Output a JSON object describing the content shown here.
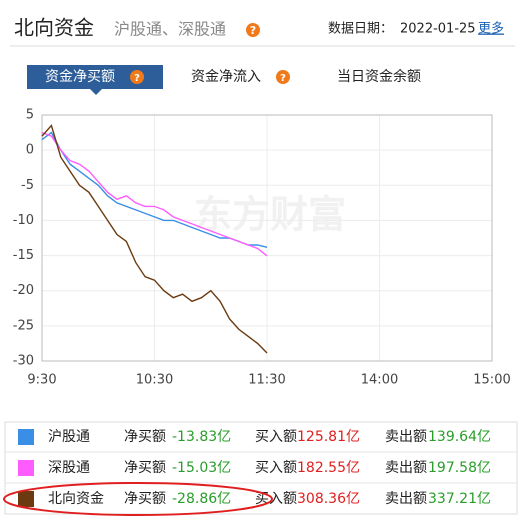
{
  "header": {
    "title": "北向资金",
    "subtitle": "沪股通、深股通",
    "help": "?",
    "date_label": "数据日期：",
    "date": "2022-01-25",
    "more": "更多"
  },
  "tabs": [
    "资金净买额",
    "资金净流入",
    "当日资金余额"
  ],
  "chart_data": {
    "type": "line",
    "watermark": "东方财富",
    "x": [
      "9:30",
      "9:35",
      "9:40",
      "9:45",
      "9:50",
      "9:55",
      "10:00",
      "10:05",
      "10:10",
      "10:15",
      "10:20",
      "10:25",
      "10:30",
      "10:35",
      "10:40",
      "10:45",
      "10:50",
      "10:55",
      "11:00",
      "11:05",
      "11:10",
      "11:15",
      "11:20",
      "11:25",
      "11:30"
    ],
    "xlim": [
      "9:30",
      "15:00"
    ],
    "xticks": [
      "9:30",
      "10:30",
      "11:30",
      "14:00",
      "15:00"
    ],
    "ylim": [
      -30,
      5
    ],
    "yticks": [
      5,
      0,
      -5,
      -10,
      -15,
      -20,
      -25,
      -30
    ],
    "grid": true,
    "series": [
      {
        "name": "沪股通",
        "color": "#3a8ee6",
        "values": [
          1.5,
          2.5,
          0,
          -2,
          -3,
          -4,
          -5,
          -6.5,
          -7.5,
          -8,
          -8.5,
          -9,
          -9.5,
          -10,
          -10,
          -10.5,
          -11,
          -11.5,
          -12,
          -12.5,
          -12.5,
          -13,
          -13.5,
          -13.5,
          -13.83
        ]
      },
      {
        "name": "深股通",
        "color": "#ff5cff",
        "values": [
          2.5,
          2,
          0,
          -1.5,
          -2,
          -3,
          -4.5,
          -6,
          -7,
          -6.5,
          -7.5,
          -8,
          -8,
          -8.5,
          -9.5,
          -10,
          -10.5,
          -11,
          -11.5,
          -12,
          -12.5,
          -13,
          -13.5,
          -14,
          -15.03
        ]
      },
      {
        "name": "北向资金",
        "color": "#6b3a10",
        "values": [
          2,
          3.5,
          -1,
          -3,
          -5,
          -6,
          -8,
          -10,
          -12,
          -13,
          -16,
          -18,
          -18.5,
          -20,
          -21,
          -20.5,
          -21.5,
          -21,
          -20,
          -21.5,
          -24,
          -25.5,
          -26.5,
          -27.5,
          -28.86
        ]
      }
    ]
  },
  "legend": {
    "rows": [
      {
        "net_label": "净买额",
        "net": "-13.83亿",
        "buy_label": "买入额",
        "buy": "125.81亿",
        "sell_label": "卖出额",
        "sell": "139.64亿"
      },
      {
        "net_label": "净买额",
        "net": "-15.03亿",
        "buy_label": "买入额",
        "buy": "182.55亿",
        "sell_label": "卖出额",
        "sell": "197.58亿"
      },
      {
        "net_label": "净买额",
        "net": "-28.86亿",
        "buy_label": "买入额",
        "buy": "308.36亿",
        "sell_label": "卖出额",
        "sell": "337.21亿"
      }
    ]
  }
}
